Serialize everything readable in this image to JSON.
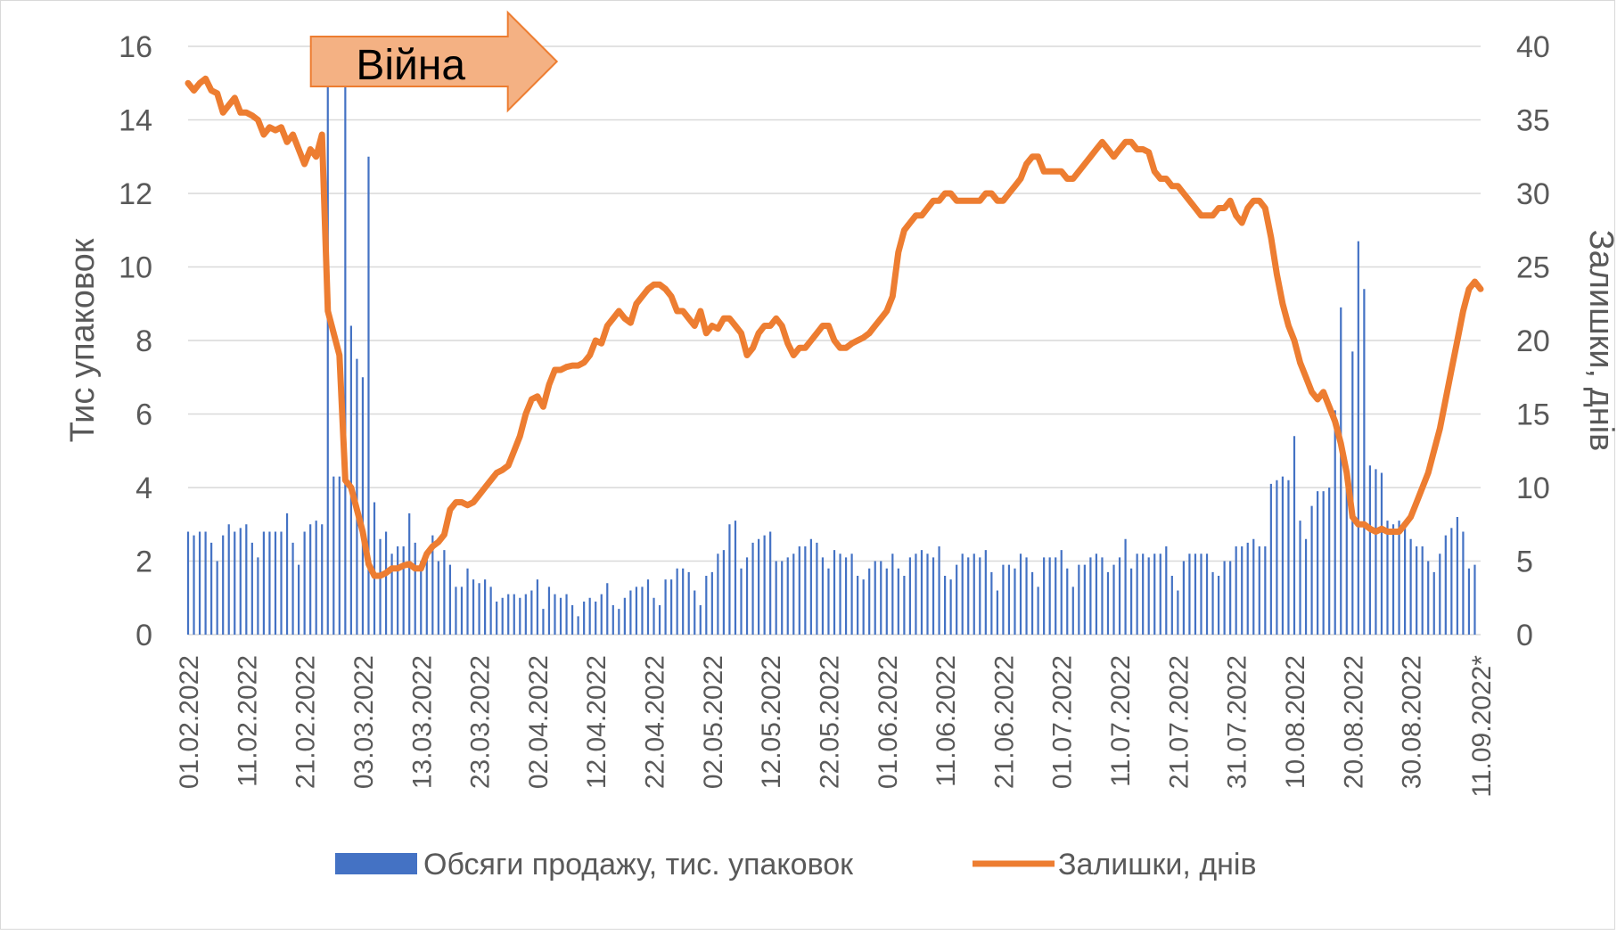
{
  "chart_data": {
    "type": "bar",
    "x_ticks": [
      "01.02.2022",
      "11.02.2022",
      "21.02.2022",
      "03.03.2022",
      "13.03.2022",
      "23.03.2022",
      "02.04.2022",
      "12.04.2022",
      "22.04.2022",
      "02.05.2022",
      "12.05.2022",
      "22.05.2022",
      "01.06.2022",
      "11.06.2022",
      "21.06.2022",
      "01.07.2022",
      "11.07.2022",
      "21.07.2022",
      "31.07.2022",
      "10.08.2022",
      "20.08.2022",
      "30.08.2022",
      "11.09.2022*"
    ],
    "y_left": {
      "label": "Тис упаковок",
      "ticks": [
        "0",
        "2",
        "4",
        "6",
        "8",
        "10",
        "12",
        "14",
        "16"
      ],
      "min": 0,
      "max": 16
    },
    "y_right": {
      "label": "Залишки, днів",
      "ticks": [
        "0",
        "5",
        "10",
        "15",
        "20",
        "25",
        "30",
        "35",
        "40"
      ],
      "min": 0,
      "max": 40
    },
    "grid": "horizontal",
    "legend_position": "bottom",
    "annotation": {
      "text": "Війна",
      "day_index": 22
    },
    "series": [
      {
        "name": "Обсяги продажу, тис. упаковок",
        "type": "bar",
        "axis": "left",
        "color": "#4472c4",
        "values": [
          2.8,
          2.7,
          2.8,
          2.8,
          2.5,
          2.0,
          2.7,
          3.0,
          2.8,
          2.9,
          3.0,
          2.5,
          2.1,
          2.8,
          2.8,
          2.8,
          2.8,
          3.3,
          2.5,
          1.9,
          2.8,
          3.0,
          3.1,
          3.0,
          15.5,
          4.3,
          4.3,
          15.0,
          8.4,
          7.5,
          7.0,
          13.0,
          3.6,
          2.6,
          2.8,
          2.2,
          2.4,
          2.4,
          3.3,
          2.5,
          2.0,
          2.2,
          2.7,
          2.0,
          2.3,
          1.9,
          1.3,
          1.3,
          1.8,
          1.5,
          1.4,
          1.5,
          1.3,
          0.9,
          1.0,
          1.1,
          1.1,
          1.0,
          1.1,
          1.2,
          1.5,
          0.7,
          1.3,
          1.1,
          1.0,
          1.1,
          0.8,
          0.5,
          0.9,
          1.0,
          0.9,
          1.1,
          1.4,
          0.8,
          0.7,
          1.0,
          1.2,
          1.3,
          1.3,
          1.5,
          1.0,
          0.8,
          1.5,
          1.5,
          1.8,
          1.8,
          1.7,
          1.2,
          0.8,
          1.6,
          1.7,
          2.2,
          2.3,
          3.0,
          3.1,
          1.8,
          2.1,
          2.5,
          2.6,
          2.7,
          2.8,
          2.0,
          2.0,
          2.1,
          2.2,
          2.4,
          2.4,
          2.6,
          2.5,
          2.1,
          1.8,
          2.3,
          2.2,
          2.1,
          2.2,
          1.6,
          1.5,
          1.8,
          2.0,
          2.0,
          1.8,
          2.2,
          1.8,
          1.6,
          2.1,
          2.2,
          2.3,
          2.2,
          2.1,
          2.4,
          1.6,
          1.5,
          1.9,
          2.2,
          2.1,
          2.2,
          2.1,
          2.3,
          1.7,
          1.2,
          1.9,
          1.9,
          1.8,
          2.2,
          2.1,
          1.7,
          1.3,
          2.1,
          2.1,
          2.1,
          2.3,
          1.8,
          1.3,
          1.9,
          1.9,
          2.1,
          2.2,
          2.1,
          1.7,
          1.9,
          2.1,
          2.6,
          1.8,
          2.2,
          2.2,
          2.1,
          2.2,
          2.2,
          2.4,
          1.6,
          1.2,
          2.0,
          2.2,
          2.2,
          2.2,
          2.2,
          1.7,
          1.6,
          2.0,
          2.0,
          2.4,
          2.4,
          2.5,
          2.6,
          2.4,
          2.4,
          4.1,
          4.2,
          4.3,
          4.2,
          5.4,
          3.1,
          2.6,
          3.5,
          3.9,
          3.9,
          4.0,
          6.1,
          8.9,
          4.5,
          7.7,
          10.7,
          9.4,
          4.6,
          4.5,
          4.4,
          3.1,
          3.0,
          3.1,
          2.9,
          2.6,
          2.4,
          2.4,
          2.0,
          1.7,
          2.2,
          2.7,
          2.9,
          3.2,
          2.8,
          1.8,
          1.9
        ]
      },
      {
        "name": "Залишки, днів",
        "type": "line",
        "axis": "right",
        "color": "#ed7d31",
        "values": [
          37.5,
          37.0,
          37.5,
          37.8,
          37.0,
          36.8,
          35.5,
          36.0,
          36.5,
          35.5,
          35.5,
          35.3,
          35.0,
          34.0,
          34.5,
          34.3,
          34.5,
          33.5,
          34.0,
          33.0,
          32.0,
          33.0,
          32.5,
          34.0,
          22.0,
          20.5,
          19.0,
          10.5,
          10.0,
          8.5,
          7.0,
          4.8,
          4.0,
          4.0,
          4.2,
          4.5,
          4.5,
          4.7,
          4.8,
          4.5,
          4.5,
          5.5,
          6.0,
          6.3,
          6.8,
          8.5,
          9.0,
          9.0,
          8.8,
          9.0,
          9.5,
          10.0,
          10.5,
          11.0,
          11.2,
          11.5,
          12.5,
          13.5,
          15.0,
          16.0,
          16.2,
          15.5,
          17.0,
          18.0,
          18.0,
          18.2,
          18.3,
          18.3,
          18.5,
          19.0,
          20.0,
          19.8,
          21.0,
          21.5,
          22.0,
          21.5,
          21.2,
          22.5,
          23.0,
          23.5,
          23.8,
          23.8,
          23.5,
          23.0,
          22.0,
          22.0,
          21.5,
          21.0,
          22.0,
          20.5,
          21.0,
          20.8,
          21.5,
          21.5,
          21.0,
          20.5,
          19.0,
          19.5,
          20.5,
          21.0,
          21.0,
          21.5,
          21.0,
          19.8,
          19.0,
          19.5,
          19.5,
          20.0,
          20.5,
          21.0,
          21.0,
          20.0,
          19.5,
          19.5,
          19.8,
          20.0,
          20.2,
          20.5,
          21.0,
          21.5,
          22.0,
          23.0,
          26.0,
          27.5,
          28.0,
          28.5,
          28.5,
          29.0,
          29.5,
          29.5,
          30.0,
          30.0,
          29.5,
          29.5,
          29.5,
          29.5,
          29.5,
          30.0,
          30.0,
          29.5,
          29.5,
          30.0,
          30.5,
          31.0,
          32.0,
          32.5,
          32.5,
          31.5,
          31.5,
          31.5,
          31.5,
          31.0,
          31.0,
          31.5,
          32.0,
          32.5,
          33.0,
          33.5,
          33.0,
          32.5,
          33.0,
          33.5,
          33.5,
          33.0,
          33.0,
          32.8,
          31.5,
          31.0,
          31.0,
          30.5,
          30.5,
          30.0,
          29.5,
          29.0,
          28.5,
          28.5,
          28.5,
          29.0,
          29.0,
          29.5,
          28.5,
          28.0,
          29.0,
          29.5,
          29.5,
          29.0,
          27.0,
          24.5,
          22.5,
          21.0,
          20.0,
          18.5,
          17.5,
          16.5,
          16.0,
          16.5,
          15.5,
          14.5,
          13.0,
          11.0,
          8.0,
          7.5,
          7.5,
          7.2,
          7.0,
          7.2,
          7.0,
          7.0,
          7.0,
          7.5,
          8.0,
          9.0,
          10.0,
          11.0,
          12.5,
          14.0,
          16.0,
          18.0,
          20.0,
          22.0,
          23.5,
          24.0,
          23.5
        ]
      }
    ]
  }
}
